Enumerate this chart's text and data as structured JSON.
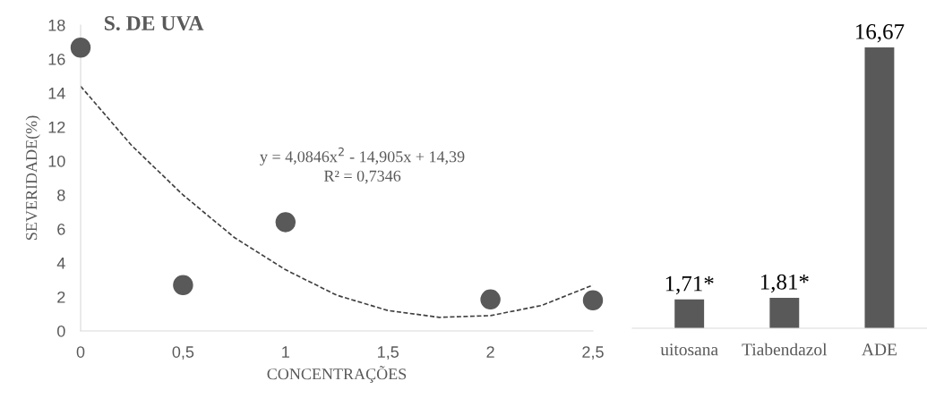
{
  "chart_data": [
    {
      "type": "scatter",
      "title": "S. DE UVA",
      "xlabel": "CONCENTRAÇÕES",
      "ylabel": "SEVERIDADE(%)",
      "series": [
        {
          "type": "scatter",
          "color": "#595959",
          "marker": "circle",
          "x": [
            0,
            0.5,
            1,
            2,
            2.5
          ],
          "values": [
            16.67,
            2.7,
            6.4,
            1.85,
            1.8
          ]
        },
        {
          "type": "line",
          "color": "#404040",
          "marker": "none",
          "line_style": "dashed",
          "x": [
            0,
            0.25,
            0.5,
            0.75,
            1,
            1.25,
            1.5,
            1.75,
            2,
            2.25,
            2.5
          ],
          "values": [
            14.4,
            10.9,
            8.0,
            5.5,
            3.6,
            2.1,
            1.2,
            0.8,
            0.9,
            1.5,
            2.7
          ]
        }
      ],
      "annotations": [
        "y = 4,0846x$^{2}$ - 14,905x + 14,39",
        "R² = 0,7346"
      ],
      "xlim": [
        0,
        2.5
      ],
      "ylim": [
        0,
        18
      ],
      "xticks": [
        0,
        {
          "value": 0.5,
          "label": "0,5"
        },
        1,
        {
          "value": 1.5,
          "label": "1,5"
        },
        2,
        {
          "value": 2.5,
          "label": "2,5"
        }
      ],
      "yticks": [
        0,
        2,
        4,
        6,
        8,
        10,
        12,
        14,
        16,
        18
      ],
      "grid": false,
      "legend": false
    },
    {
      "type": "bar",
      "categories": [
        "uitosana",
        "Tiabendazol",
        "ADE"
      ],
      "values": [
        1.71,
        1.81,
        16.67
      ],
      "color": "#595959",
      "value_labels": [
        "1,71*",
        "1,81*",
        "16,67"
      ],
      "ylim": [
        0,
        18
      ],
      "tick_labels": "x",
      "grid": false
    }
  ]
}
